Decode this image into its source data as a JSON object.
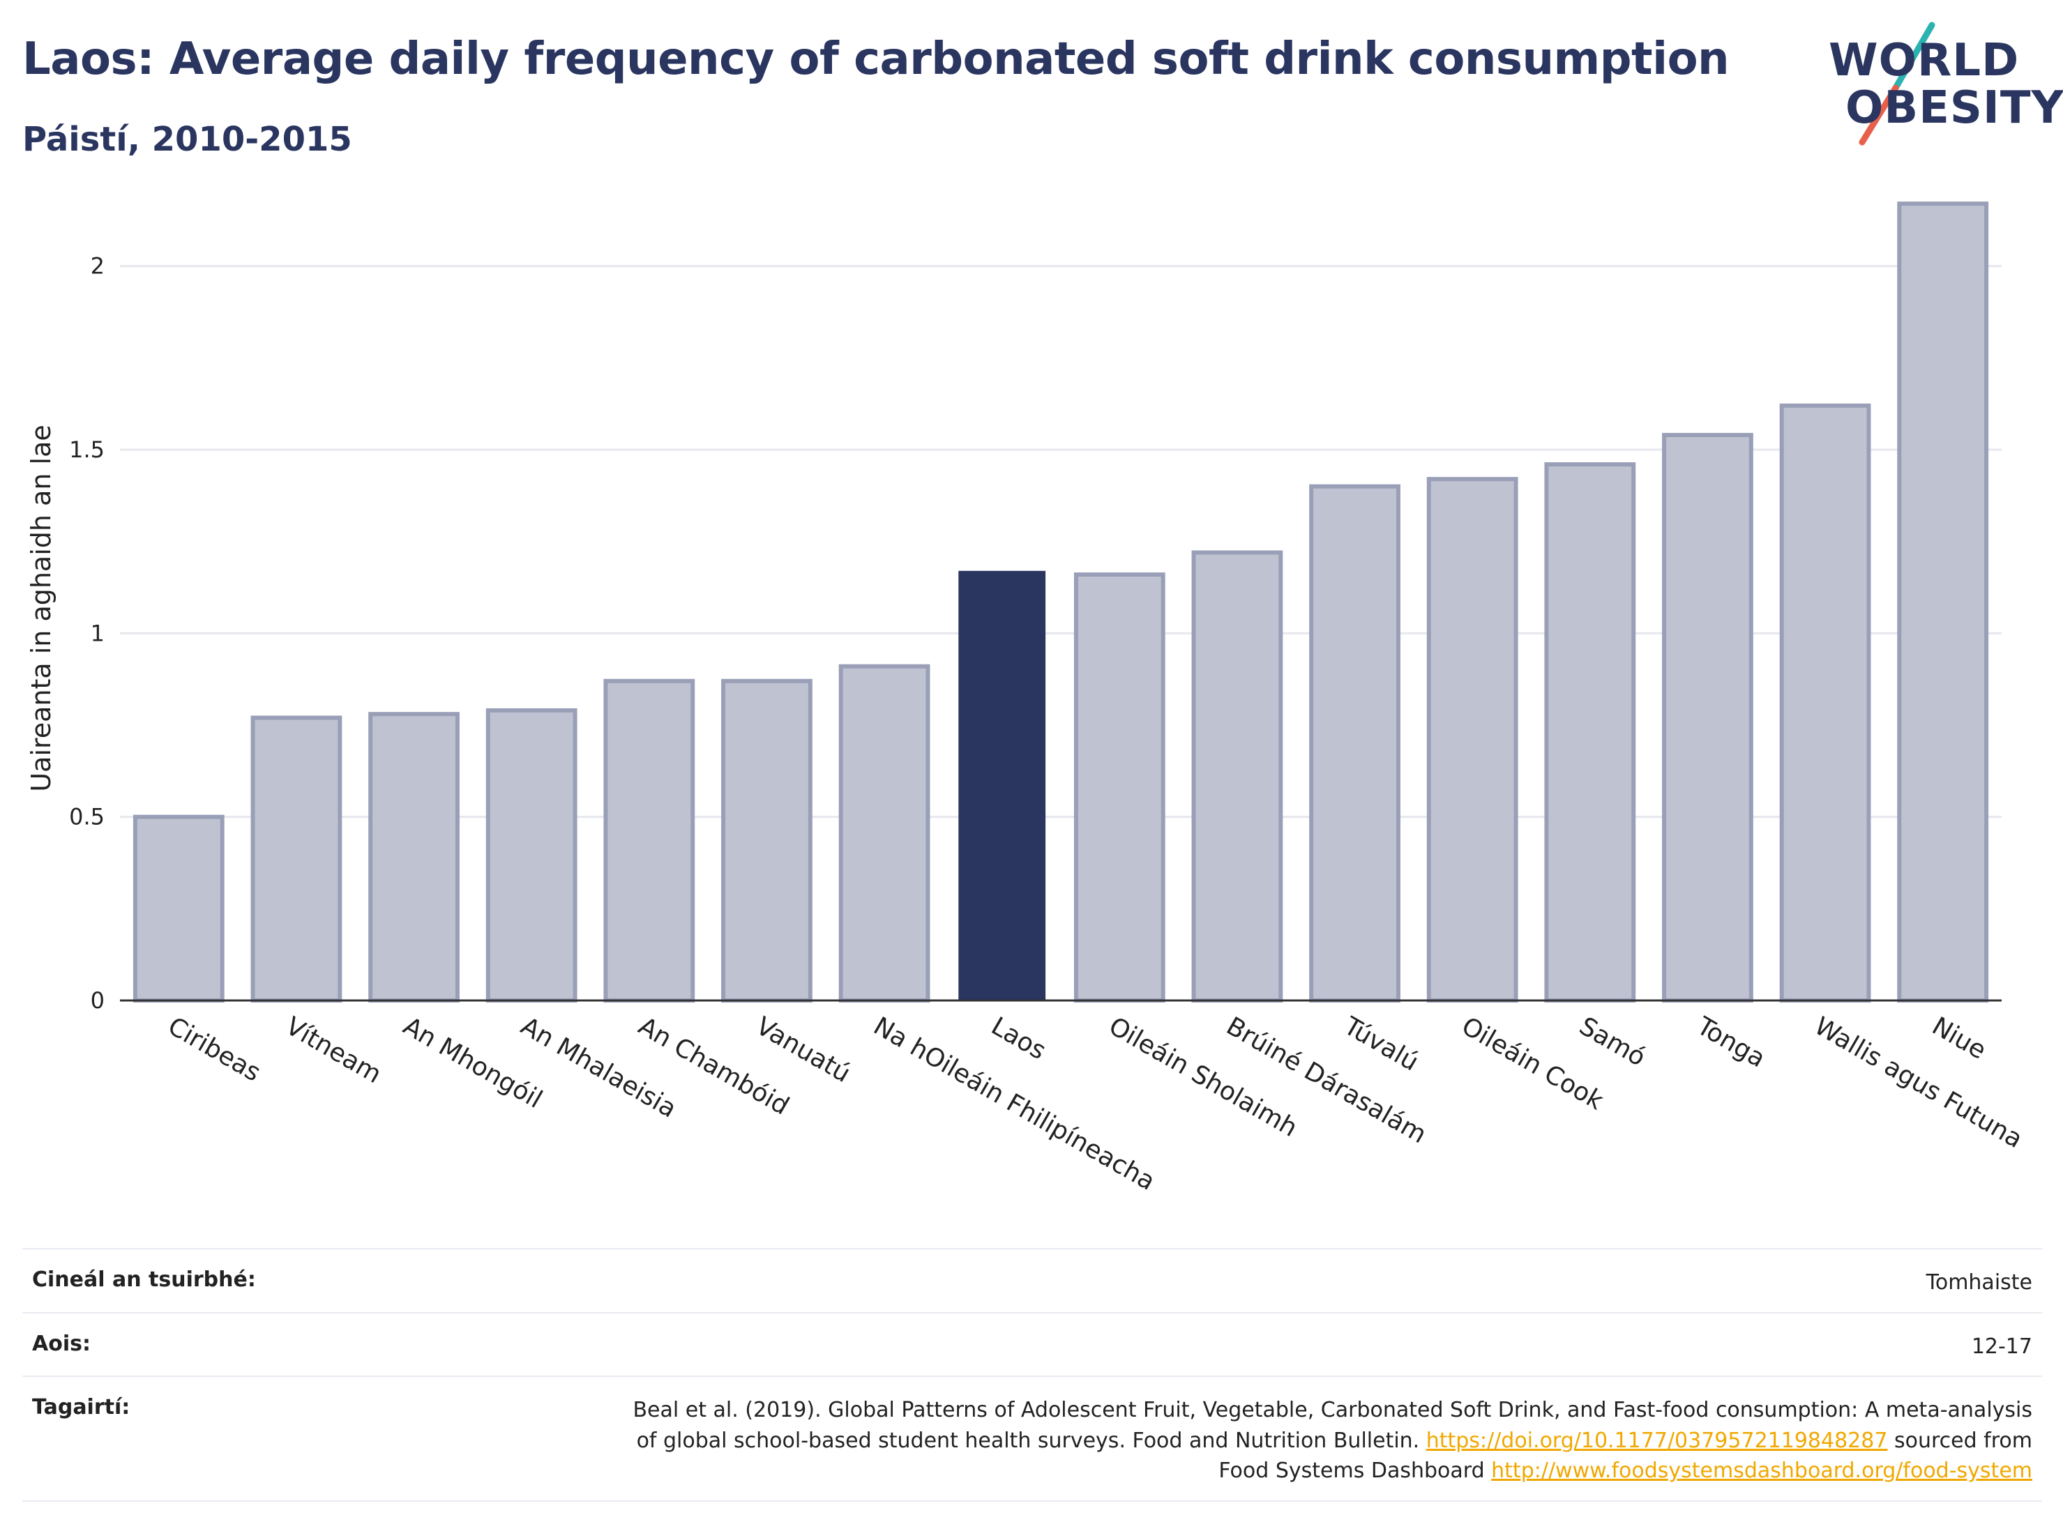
{
  "header": {
    "title": "Laos: Average daily frequency of carbonated soft drink consumption",
    "subtitle": "Páistí, 2010-2015"
  },
  "logo": {
    "line1": "WORLD",
    "line2": "OBESITY",
    "accent_teal": "#2ab3b1",
    "accent_coral": "#e8604c"
  },
  "colors": {
    "highlight_bar": "#2a3560",
    "other_bar_fill": "#bfc3d1",
    "other_bar_stroke": "#9a9fb8",
    "grid": "#e6e8ee",
    "axis": "#333333"
  },
  "chart_data": {
    "type": "bar",
    "title": "Laos: Average daily frequency of carbonated soft drink consumption",
    "subtitle": "Páistí, 2010-2015",
    "ylabel": "Uaireanta in aghaidh an lae",
    "xlabel": "",
    "ylim": [
      0,
      2.25
    ],
    "yticks": [
      0,
      0.5,
      1,
      1.5,
      2
    ],
    "ytick_labels": [
      "0",
      "0.5",
      "1",
      "1.5",
      "2"
    ],
    "grid": true,
    "highlight": "Laos",
    "categories": [
      "Ciribeas",
      "Vítneam",
      "An Mhongóil",
      "An Mhalaeisia",
      "An Chambóid",
      "Vanuatú",
      "Na hOileáin Fhilipíneacha",
      "Laos",
      "Oileáin Sholaimh",
      "Brúiné Dárasalám",
      "Túvalú",
      "Oileáin Cook",
      "Samó",
      "Tonga",
      "Wallis agus Futuna",
      "Niue"
    ],
    "values": [
      0.5,
      0.77,
      0.78,
      0.79,
      0.87,
      0.87,
      0.91,
      1.17,
      1.16,
      1.22,
      1.4,
      1.42,
      1.46,
      1.54,
      1.62,
      2.17
    ]
  },
  "info": {
    "survey_label": "Cineál an tsuirbhé:",
    "survey_value": "Tomhaiste",
    "age_label": "Aois:",
    "age_value": "12-17",
    "ref_label": "Tagairtí:",
    "ref_text_1": "Beal et al. (2019). Global Patterns of Adolescent Fruit, Vegetable, Carbonated Soft Drink, and Fast-food consumption: A meta-analysis",
    "ref_text_2": "of global school-based student health surveys. Food and Nutrition Bulletin. ",
    "ref_link_1": "https://doi.org/10.1177/0379572119848287",
    "ref_text_3": " sourced from",
    "ref_text_4": "Food Systems Dashboard ",
    "ref_link_2": "http://www.foodsystemsdashboard.org/food-system"
  }
}
